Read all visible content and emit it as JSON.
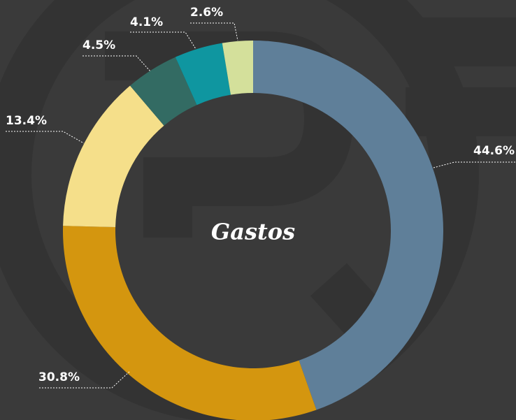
{
  "chart_data": {
    "type": "donut",
    "center_label": "Gastos",
    "categories": [
      null,
      null,
      null,
      null,
      null,
      null
    ],
    "values": [
      44.6,
      30.8,
      13.4,
      4.5,
      4.1,
      2.6
    ],
    "value_labels": [
      "44.6%",
      "30.8%",
      "13.4%",
      "4.5%",
      "4.1%",
      "2.6%"
    ],
    "colors": [
      "#5f7f99",
      "#d4960f",
      "#f5df8a",
      "#336b63",
      "#0f96a0",
      "#d4e09b"
    ]
  }
}
